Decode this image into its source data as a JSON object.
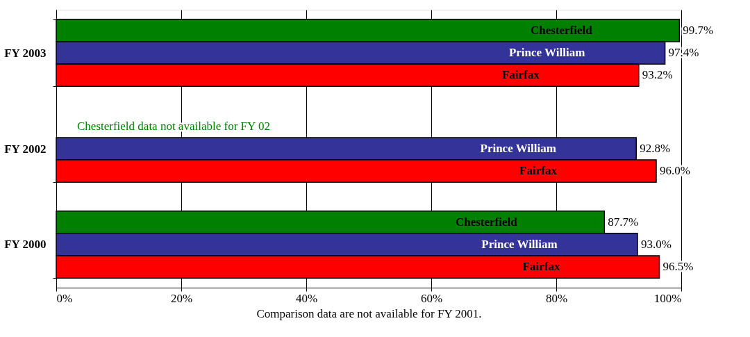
{
  "chart_data": {
    "type": "bar",
    "orientation": "horizontal",
    "categories": [
      "FY 2003",
      "FY 2002",
      "FY 2000"
    ],
    "series": [
      {
        "name": "Chesterfield",
        "color": "#008000",
        "values": [
          99.7,
          null,
          87.7
        ],
        "value_labels": [
          "99.7%",
          null,
          "87.7%"
        ]
      },
      {
        "name": "Prince William",
        "color": "#333399",
        "values": [
          97.4,
          92.8,
          93.0
        ],
        "value_labels": [
          "97.4%",
          "92.8%",
          "93.0%"
        ]
      },
      {
        "name": "Fairfax",
        "color": "#ff0000",
        "values": [
          93.2,
          96.0,
          96.5
        ],
        "value_labels": [
          "93.2%",
          "96.0%",
          "96.5%"
        ]
      }
    ],
    "xlim": [
      0,
      100
    ],
    "xticks": [
      {
        "value": 0,
        "label": "0%"
      },
      {
        "value": 20,
        "label": "20%"
      },
      {
        "value": 40,
        "label": "40%"
      },
      {
        "value": 60,
        "label": "60%"
      },
      {
        "value": 80,
        "label": "80%"
      },
      {
        "value": 100,
        "label": "100%"
      }
    ],
    "xlabel": "Comparison data are not available for FY 2001.",
    "annotations": [
      "Chesterfield data not available for FY 02"
    ],
    "grid": "x",
    "legend": false
  }
}
